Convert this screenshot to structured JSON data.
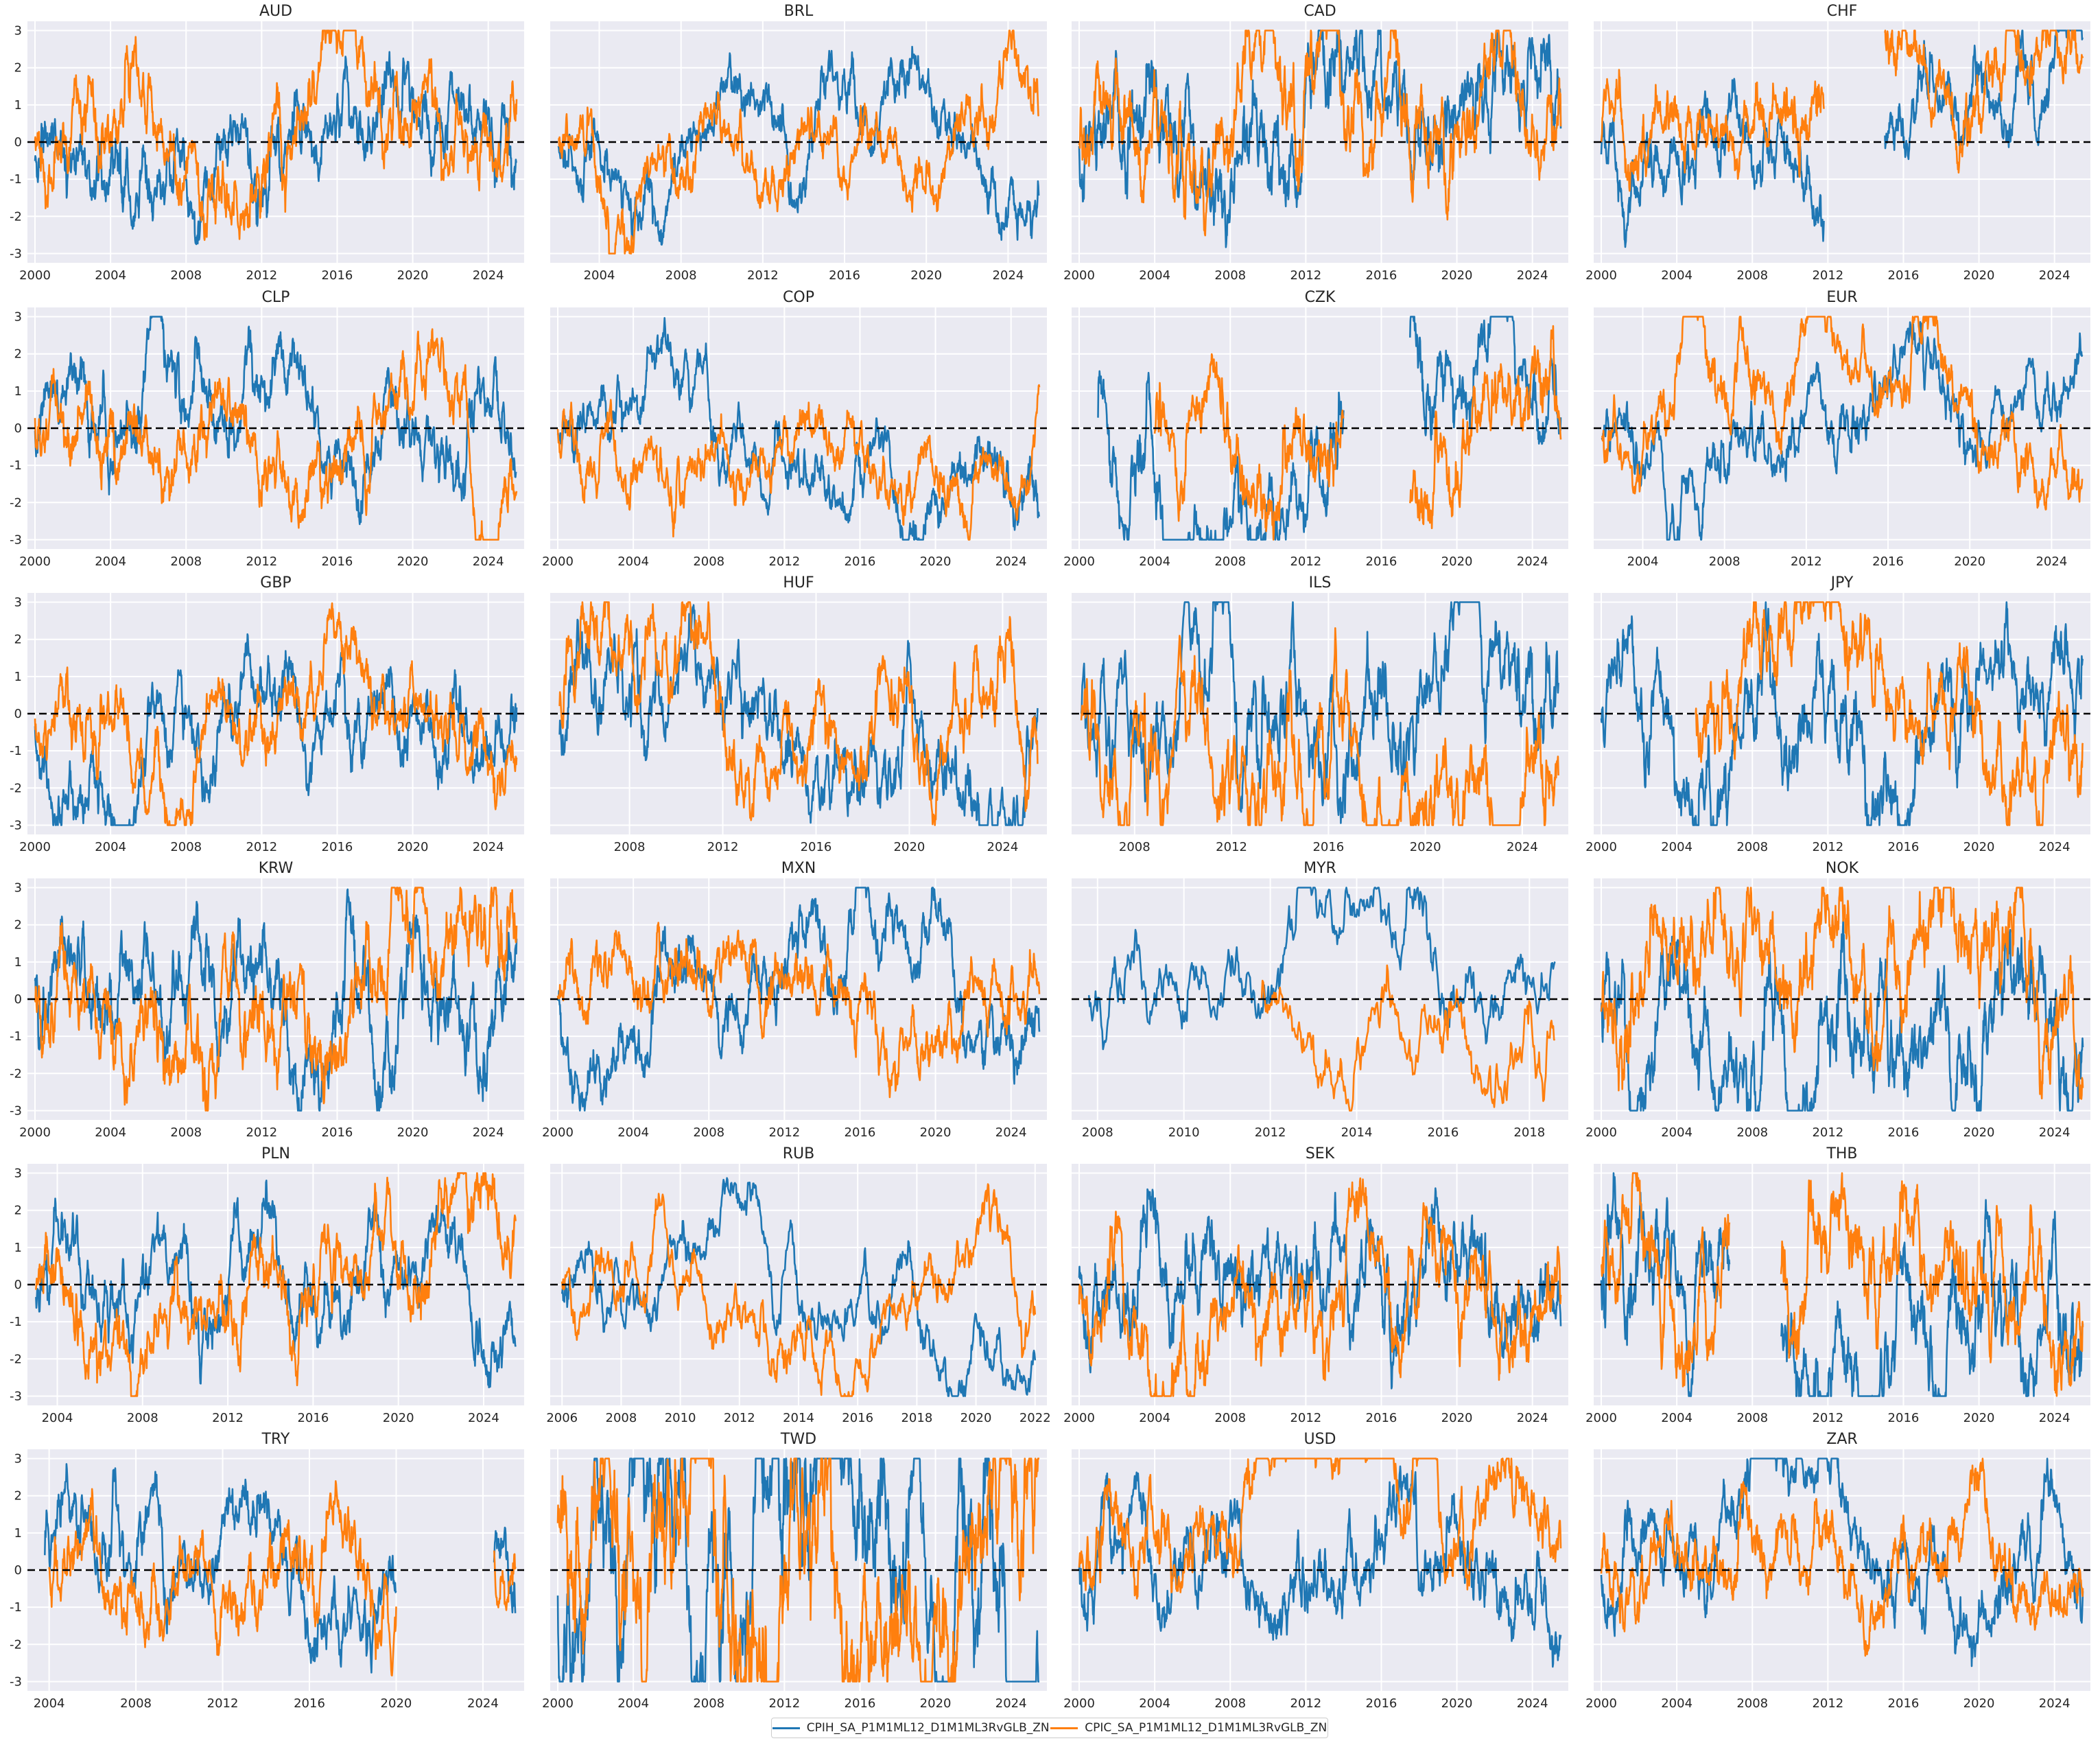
{
  "colors": {
    "series_1": "#1f77b4",
    "series_2": "#ff7f0e",
    "panel_background": "#eaeaf2",
    "zero_line": "#000000"
  },
  "legend": {
    "placement": "bottom-center",
    "entries": [
      "CPIH_SA_P1M1ML12_D1M1ML3RvGLB_ZN",
      "CPIC_SA_P1M1ML12_D1M1ML3RvGLB_ZN"
    ]
  },
  "chart_data": {
    "type": "line",
    "layout": "small-multiples",
    "grid": true,
    "ylim": [
      -3.25,
      3.25
    ],
    "yticks": [
      -3,
      -2,
      -1,
      0,
      1,
      2,
      3
    ],
    "reference_line": {
      "y": 0,
      "style": "dashed"
    },
    "series_names": [
      "CPIH_SA_P1M1ML12_D1M1ML3RvGLB_ZN",
      "CPIC_SA_P1M1ML12_D1M1ML3RvGLB_ZN"
    ],
    "panels": [
      {
        "title": "AUD",
        "xlim": [
          1999.6,
          2025.9
        ],
        "xticks": [
          2000,
          2004,
          2008,
          2012,
          2016,
          2020,
          2024
        ],
        "series1_range": [
          2000.0,
          2025.5
        ],
        "series2_range": [
          2000.0,
          2025.5
        ],
        "series1_gaps": [],
        "series2_gaps": [],
        "volatility": 0.55
      },
      {
        "title": "BRL",
        "xlim": [
          2001.6,
          2025.9
        ],
        "xticks": [
          2004,
          2008,
          2012,
          2016,
          2020,
          2024
        ],
        "series1_range": [
          2002.0,
          2025.5
        ],
        "series2_range": [
          2002.0,
          2025.5
        ],
        "series1_gaps": [],
        "series2_gaps": [],
        "volatility": 0.45
      },
      {
        "title": "CAD",
        "xlim": [
          1999.6,
          2025.9
        ],
        "xticks": [
          2000,
          2004,
          2008,
          2012,
          2016,
          2020,
          2024
        ],
        "series1_range": [
          2000.0,
          2025.5
        ],
        "series2_range": [
          2000.0,
          2025.5
        ],
        "series1_gaps": [],
        "series2_gaps": [],
        "volatility": 0.7
      },
      {
        "title": "CHF",
        "xlim": [
          1999.6,
          2025.9
        ],
        "xticks": [
          2000,
          2004,
          2008,
          2012,
          2016,
          2020,
          2024
        ],
        "series1_range": [
          2000.0,
          2025.5
        ],
        "series2_range": [
          2000.0,
          2025.5
        ],
        "series1_gaps": [
          [
            2011.8,
            2015.0
          ]
        ],
        "series2_gaps": [
          [
            2011.8,
            2015.0
          ]
        ],
        "volatility": 0.5
      },
      {
        "title": "CLP",
        "xlim": [
          1999.6,
          2025.9
        ],
        "xticks": [
          2000,
          2004,
          2008,
          2012,
          2016,
          2020,
          2024
        ],
        "series1_range": [
          2000.0,
          2025.5
        ],
        "series2_range": [
          2000.0,
          2025.5
        ],
        "series1_gaps": [],
        "series2_gaps": [],
        "volatility": 0.5
      },
      {
        "title": "COP",
        "xlim": [
          1999.6,
          2025.9
        ],
        "xticks": [
          2000,
          2004,
          2008,
          2012,
          2016,
          2020,
          2024
        ],
        "series1_range": [
          2000.0,
          2025.5
        ],
        "series2_range": [
          2000.0,
          2025.5
        ],
        "series1_gaps": [],
        "series2_gaps": [],
        "volatility": 0.4
      },
      {
        "title": "CZK",
        "xlim": [
          1999.6,
          2025.9
        ],
        "xticks": [
          2000,
          2004,
          2008,
          2012,
          2016,
          2020,
          2024
        ],
        "series1_range": [
          2001.0,
          2025.5
        ],
        "series2_range": [
          2004.0,
          2025.5
        ],
        "series1_gaps": [
          [
            2014.0,
            2017.5
          ]
        ],
        "series2_gaps": [
          [
            2014.0,
            2017.5
          ]
        ],
        "volatility": 0.6
      },
      {
        "title": "EUR",
        "xlim": [
          2001.6,
          2025.9
        ],
        "xticks": [
          2004,
          2008,
          2012,
          2016,
          2020,
          2024
        ],
        "series1_range": [
          2002.0,
          2025.5
        ],
        "series2_range": [
          2002.0,
          2025.5
        ],
        "series1_gaps": [],
        "series2_gaps": [],
        "volatility": 0.45
      },
      {
        "title": "GBP",
        "xlim": [
          1999.6,
          2025.9
        ],
        "xticks": [
          2000,
          2004,
          2008,
          2012,
          2016,
          2020,
          2024
        ],
        "series1_range": [
          2000.0,
          2025.5
        ],
        "series2_range": [
          2000.0,
          2025.5
        ],
        "series1_gaps": [],
        "series2_gaps": [],
        "volatility": 0.5
      },
      {
        "title": "HUF",
        "xlim": [
          2004.6,
          2025.9
        ],
        "xticks": [
          2008,
          2012,
          2016,
          2020,
          2024
        ],
        "series1_range": [
          2005.0,
          2025.5
        ],
        "series2_range": [
          2005.0,
          2025.5
        ],
        "series1_gaps": [],
        "series2_gaps": [],
        "volatility": 0.65
      },
      {
        "title": "ILS",
        "xlim": [
          2005.4,
          2025.9
        ],
        "xticks": [
          2008,
          2012,
          2016,
          2020,
          2024
        ],
        "series1_range": [
          2005.8,
          2025.5
        ],
        "series2_range": [
          2005.8,
          2025.5
        ],
        "series1_gaps": [],
        "series2_gaps": [],
        "volatility": 0.9
      },
      {
        "title": "JPY",
        "xlim": [
          1999.6,
          2025.9
        ],
        "xticks": [
          2000,
          2004,
          2008,
          2012,
          2016,
          2020,
          2024
        ],
        "series1_range": [
          2000.0,
          2025.5
        ],
        "series2_range": [
          2005.0,
          2025.5
        ],
        "series1_gaps": [],
        "series2_gaps": [],
        "volatility": 0.65
      },
      {
        "title": "KRW",
        "xlim": [
          1999.6,
          2025.9
        ],
        "xticks": [
          2000,
          2004,
          2008,
          2012,
          2016,
          2020,
          2024
        ],
        "series1_range": [
          2000.0,
          2025.5
        ],
        "series2_range": [
          2000.0,
          2025.5
        ],
        "series1_gaps": [],
        "series2_gaps": [],
        "volatility": 0.65
      },
      {
        "title": "MXN",
        "xlim": [
          1999.6,
          2025.9
        ],
        "xticks": [
          2000,
          2004,
          2008,
          2012,
          2016,
          2020,
          2024
        ],
        "series1_range": [
          2000.0,
          2025.5
        ],
        "series2_range": [
          2000.0,
          2025.5
        ],
        "series1_gaps": [],
        "series2_gaps": [],
        "volatility": 0.45
      },
      {
        "title": "MYR",
        "xlim": [
          2007.4,
          2018.9
        ],
        "xticks": [
          2008,
          2010,
          2012,
          2014,
          2016,
          2018
        ],
        "series1_range": [
          2007.8,
          2018.6
        ],
        "series2_range": [
          2011.8,
          2018.6
        ],
        "series1_gaps": [],
        "series2_gaps": [],
        "volatility": 0.6
      },
      {
        "title": "NOK",
        "xlim": [
          1999.6,
          2025.9
        ],
        "xticks": [
          2000,
          2004,
          2008,
          2012,
          2016,
          2020,
          2024
        ],
        "series1_range": [
          2000.0,
          2025.5
        ],
        "series2_range": [
          2000.0,
          2025.5
        ],
        "series1_gaps": [],
        "series2_gaps": [],
        "volatility": 0.75
      },
      {
        "title": "PLN",
        "xlim": [
          2002.6,
          2025.9
        ],
        "xticks": [
          2004,
          2008,
          2012,
          2016,
          2020,
          2024
        ],
        "series1_range": [
          2003.0,
          2025.5
        ],
        "series2_range": [
          2003.0,
          2025.5
        ],
        "series1_gaps": [],
        "series2_gaps": [],
        "volatility": 0.55
      },
      {
        "title": "RUB",
        "xlim": [
          2005.6,
          2022.4
        ],
        "xticks": [
          2006,
          2008,
          2010,
          2012,
          2014,
          2016,
          2018,
          2020,
          2022
        ],
        "series1_range": [
          2006.0,
          2022.0
        ],
        "series2_range": [
          2006.0,
          2022.0
        ],
        "series1_gaps": [],
        "series2_gaps": [],
        "volatility": 0.45
      },
      {
        "title": "SEK",
        "xlim": [
          1999.6,
          2025.9
        ],
        "xticks": [
          2000,
          2004,
          2008,
          2012,
          2016,
          2020,
          2024
        ],
        "series1_range": [
          2000.0,
          2025.5
        ],
        "series2_range": [
          2000.0,
          2025.5
        ],
        "series1_gaps": [],
        "series2_gaps": [],
        "volatility": 0.65
      },
      {
        "title": "THB",
        "xlim": [
          1999.6,
          2025.9
        ],
        "xticks": [
          2000,
          2004,
          2008,
          2012,
          2016,
          2020,
          2024
        ],
        "series1_range": [
          2000.0,
          2025.5
        ],
        "series2_range": [
          2000.0,
          2025.5
        ],
        "series1_gaps": [
          [
            2006.8,
            2009.5
          ]
        ],
        "series2_gaps": [
          [
            2006.8,
            2009.5
          ]
        ],
        "volatility": 0.75
      },
      {
        "title": "TRY",
        "xlim": [
          2003.0,
          2025.9
        ],
        "xticks": [
          2004,
          2008,
          2012,
          2016,
          2020,
          2024
        ],
        "series1_range": [
          2003.8,
          2025.5
        ],
        "series2_range": [
          2004.0,
          2025.5
        ],
        "series1_gaps": [
          [
            2020.0,
            2024.5
          ]
        ],
        "series2_gaps": [
          [
            2020.0,
            2024.5
          ]
        ],
        "volatility": 0.6
      },
      {
        "title": "TWD",
        "xlim": [
          1999.6,
          2025.9
        ],
        "xticks": [
          2000,
          2004,
          2008,
          2012,
          2016,
          2020,
          2024
        ],
        "series1_range": [
          2000.0,
          2025.5
        ],
        "series2_range": [
          2000.0,
          2025.5
        ],
        "series1_gaps": [],
        "series2_gaps": [],
        "volatility": 1.3
      },
      {
        "title": "USD",
        "xlim": [
          1999.6,
          2025.9
        ],
        "xticks": [
          2000,
          2004,
          2008,
          2012,
          2016,
          2020,
          2024
        ],
        "series1_range": [
          2000.0,
          2025.5
        ],
        "series2_range": [
          2000.0,
          2025.5
        ],
        "series1_gaps": [],
        "series2_gaps": [],
        "volatility": 0.55
      },
      {
        "title": "ZAR",
        "xlim": [
          1999.6,
          2025.9
        ],
        "xticks": [
          2000,
          2004,
          2008,
          2012,
          2016,
          2020,
          2024
        ],
        "series1_range": [
          2000.0,
          2025.5
        ],
        "series2_range": [
          2000.0,
          2025.5
        ],
        "series1_gaps": [],
        "series2_gaps": [],
        "volatility": 0.5
      }
    ]
  }
}
